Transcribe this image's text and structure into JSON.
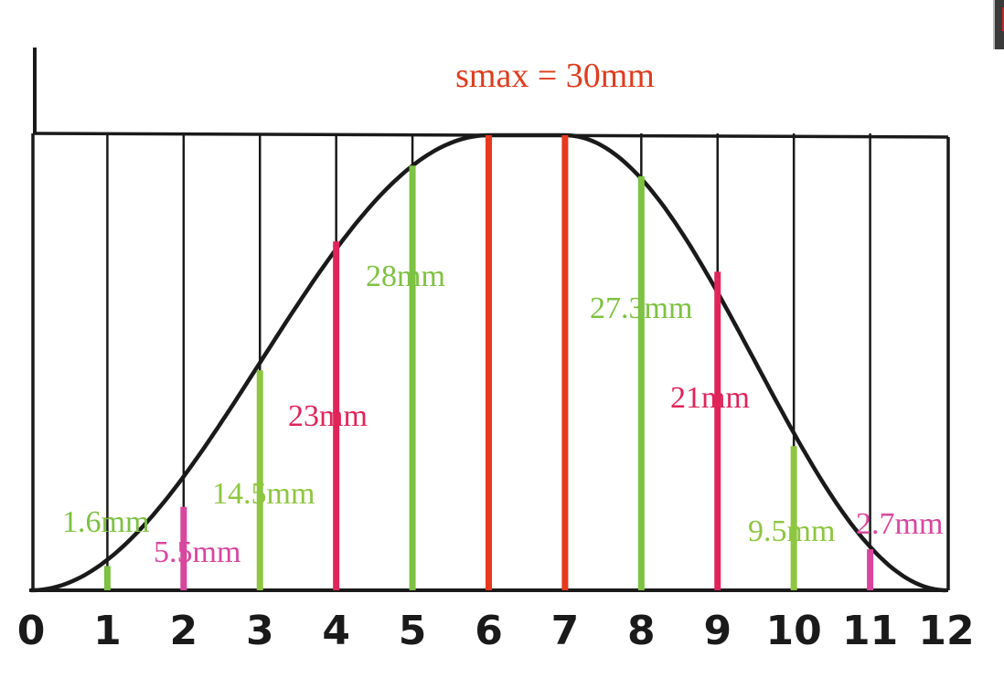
{
  "chart_data": {
    "type": "line",
    "title": "smax = 30mm",
    "xlabel": "",
    "ylabel": "",
    "xlim": [
      0,
      12
    ],
    "ylim": [
      0,
      30
    ],
    "x_ticks": [
      "0",
      "1",
      "2",
      "3",
      "4",
      "5",
      "6",
      "7",
      "8",
      "9",
      "10",
      "11",
      "12"
    ],
    "curve_shape": "smooth bell-shaped curve, 0 at x=0 and x=12, maximum 30 between x=6 and x=7",
    "bars": [
      {
        "x": 1,
        "value": 1.6,
        "label": "1.6mm",
        "color": "#7dc242"
      },
      {
        "x": 2,
        "value": 5.5,
        "label": "5.5mm",
        "color": "#d9469e"
      },
      {
        "x": 3,
        "value": 14.5,
        "label": "14.5mm",
        "color": "#8dc63f"
      },
      {
        "x": 4,
        "value": 23,
        "label": "23mm",
        "color": "#e0245a"
      },
      {
        "x": 5,
        "value": 28,
        "label": "28mm",
        "color": "#7dc242"
      },
      {
        "x": 6,
        "value": 30,
        "label": "",
        "color": "#e8381e"
      },
      {
        "x": 7,
        "value": 30,
        "label": "",
        "color": "#e8381e"
      },
      {
        "x": 8,
        "value": 27.3,
        "label": "27.3mm",
        "color": "#7dc242"
      },
      {
        "x": 9,
        "value": 21,
        "label": "21mm",
        "color": "#e0245a"
      },
      {
        "x": 10,
        "value": 9.5,
        "label": "9.5mm",
        "color": "#8dc63f"
      },
      {
        "x": 11,
        "value": 2.7,
        "label": "2.7mm",
        "color": "#d9469e"
      }
    ],
    "grid": true
  }
}
